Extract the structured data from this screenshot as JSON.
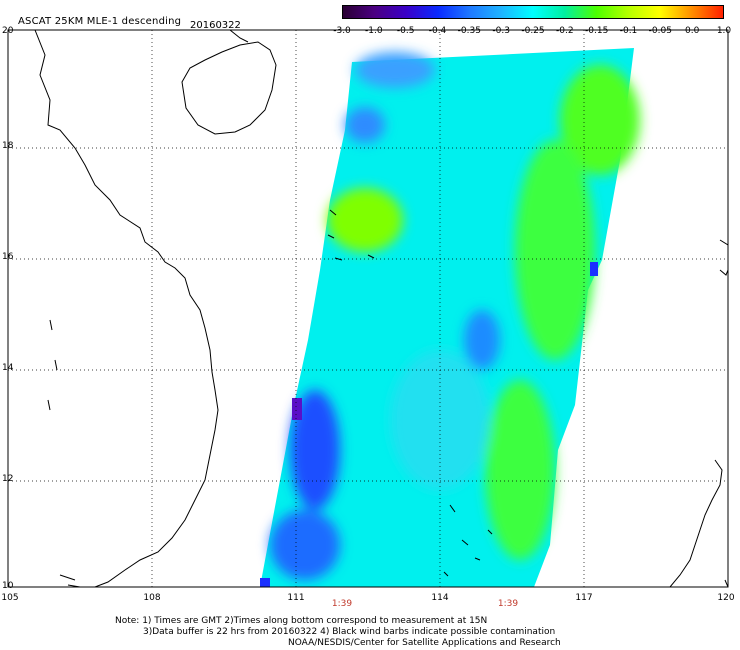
{
  "header": {
    "title": "ASCAT 25KM MLE-1 descending",
    "date": "20160322"
  },
  "colorbar": {
    "labels": [
      "-3.0",
      "-1.0",
      "-0.5",
      "-0.4",
      "-0.35",
      "-0.3",
      "-0.25",
      "-0.2",
      "-0.15",
      "-0.1",
      "-0.05",
      "0.0",
      "1.0"
    ],
    "colors": [
      "#2a0033",
      "#4b0082",
      "#3a00c8",
      "#0a2aff",
      "#1e78ff",
      "#1eb4ff",
      "#00ffff",
      "#00f0a0",
      "#4cff00",
      "#b4ff00",
      "#ffff00",
      "#ff9000",
      "#ff2000"
    ]
  },
  "axes": {
    "y_labels": [
      "20",
      "18",
      "16",
      "14",
      "12",
      "10"
    ],
    "x_labels": [
      "105",
      "108",
      "111",
      "114",
      "117",
      "120"
    ]
  },
  "times": [
    "1:39",
    "1:39"
  ],
  "notes": [
    "Note: 1) Times are GMT 2)Times along bottom correspond to measurement at 15N",
    "3)Data buffer is 22 hrs from 20160322 4) Black wind barbs indicate possible contamination",
    "NOAA/NESDIS/Center for Satellite Applications and Research"
  ]
}
